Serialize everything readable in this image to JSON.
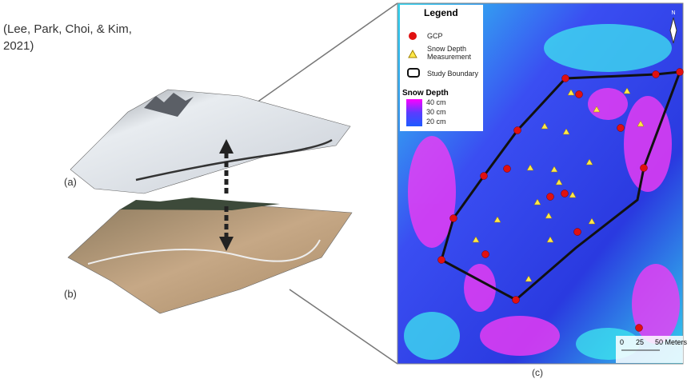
{
  "citation": {
    "lines": [
      "(Lee, Park, Choi, & Kim,",
      "2021)"
    ]
  },
  "panels": {
    "a": "(a)",
    "b": "(b)",
    "c": "(c)"
  },
  "legend": {
    "title": "Legend",
    "items": [
      "GCP",
      "Snow Depth",
      "Measurement",
      "Study Boundary"
    ],
    "scale_title": "Snow Depth",
    "scale_labels": [
      "40 cm",
      "30 cm",
      "20 cm"
    ]
  },
  "scale_bar": {
    "labels": [
      "0",
      "25",
      "50 Meters"
    ]
  },
  "north": "N"
}
